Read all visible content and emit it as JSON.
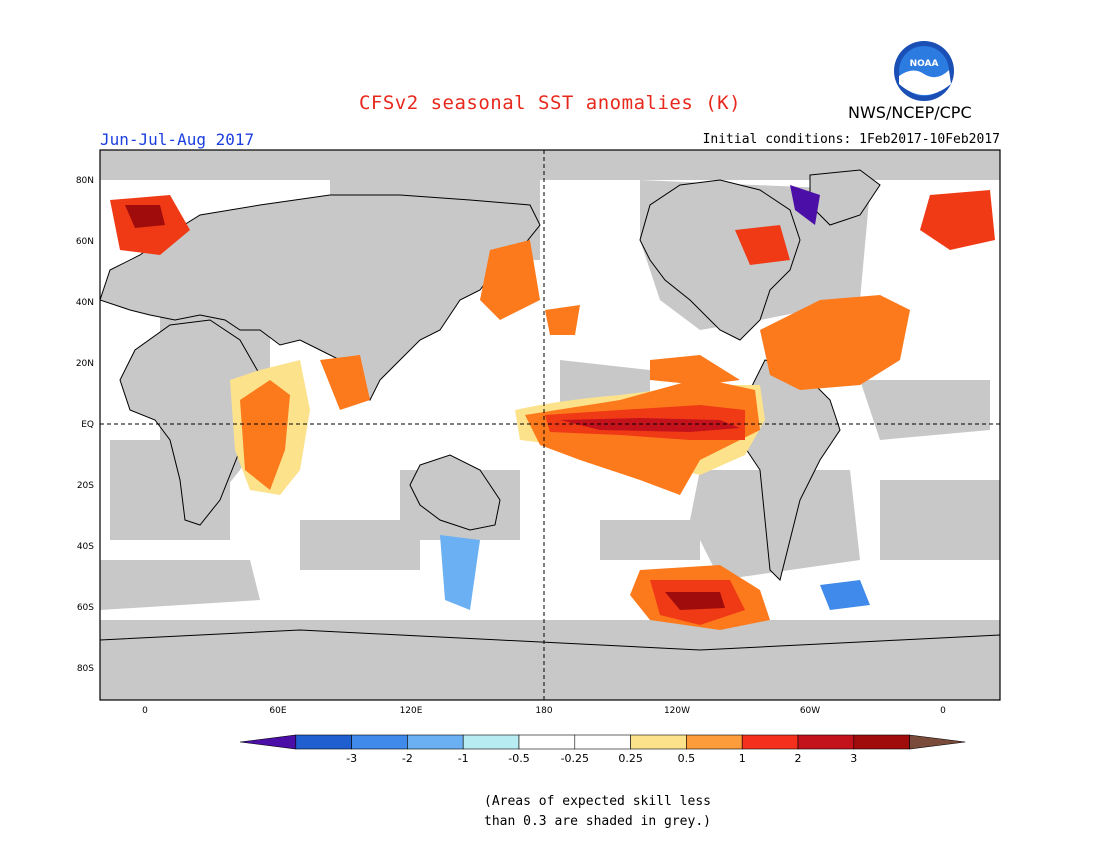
{
  "header": {
    "title": "CFSv2 seasonal SST anomalies (K)",
    "season": "Jun-Jul-Aug 2017",
    "initial_conditions": "Initial conditions: 1Feb2017-10Feb2017",
    "agency": "NWS/NCEP/CPC",
    "title_color": "#e8281c",
    "season_color": "#1c3fe0"
  },
  "logo": {
    "icon": "noaa-logo-icon",
    "text": "NOAA"
  },
  "map": {
    "land_color": "#c8c8c8",
    "lat_labels": [
      "80N",
      "60N",
      "40N",
      "20N",
      "EQ",
      "20S",
      "40S",
      "60S",
      "80S"
    ],
    "lon_labels": [
      "0",
      "60E",
      "120E",
      "180",
      "120W",
      "60W",
      "0"
    ]
  },
  "colorbar": {
    "colors": [
      "#4b0fa8",
      "#1f5fd0",
      "#3f8aea",
      "#6ab0f2",
      "#b6ecf2",
      "#ffffff",
      "#ffffff",
      "#fde28c",
      "#fd9c3a",
      "#f5301c",
      "#c4121c",
      "#a00c0c",
      "#7a4a3a"
    ],
    "labels": [
      "-3",
      "-2",
      "-1",
      "-0.5",
      "-0.25",
      "0.25",
      "0.5",
      "1",
      "2",
      "3"
    ]
  },
  "footnote": {
    "line1": "(Areas of expected skill less",
    "line2": "than 0.3 are shaded in grey.)"
  }
}
